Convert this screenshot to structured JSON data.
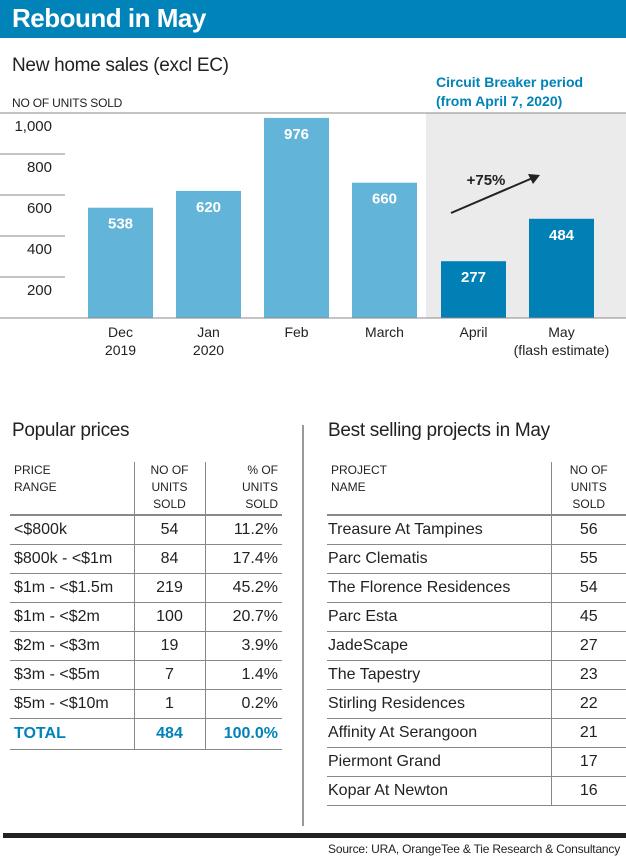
{
  "header": {
    "title": "Rebound in May"
  },
  "chart_data": {
    "type": "bar",
    "title": "New home sales (excl EC)",
    "ylabel": "NO OF UNITS SOLD",
    "ylim": [
      0,
      1000
    ],
    "yticks": [
      "200",
      "400",
      "600",
      "800",
      "1,000"
    ],
    "categories": [
      [
        "Dec",
        "2019"
      ],
      [
        "Jan",
        "2020"
      ],
      [
        "Feb",
        ""
      ],
      [
        "March",
        ""
      ],
      [
        "April",
        ""
      ],
      [
        "May",
        "(flash estimate)"
      ]
    ],
    "values": [
      538,
      620,
      976,
      660,
      277,
      484
    ],
    "value_labels": [
      "538",
      "620",
      "976",
      "660",
      "277",
      "484"
    ],
    "highlight": {
      "label_line1": "Circuit Breaker period",
      "label_line2": "(from April 7, 2020)",
      "categories": [
        "April",
        "May"
      ]
    },
    "annotation": "+75%",
    "colors": {
      "normal": "#62b4d8",
      "circuit_breaker": "#0080b4",
      "shade": "#ebebeb",
      "accent": "#0083b8"
    }
  },
  "prices": {
    "title": "Popular prices",
    "headers": [
      "PRICE\nRANGE",
      "NO OF\nUNITS\nSOLD",
      "% OF\nUNITS\nSOLD"
    ],
    "rows": [
      [
        "<$800k",
        "54",
        "11.2%"
      ],
      [
        "$800k - <$1m",
        "84",
        "17.4%"
      ],
      [
        "$1m - <$1.5m",
        "219",
        "45.2%"
      ],
      [
        "$1m - <$2m",
        "100",
        "20.7%"
      ],
      [
        "$2m - <$3m",
        "19",
        "3.9%"
      ],
      [
        "$3m - <$5m",
        "7",
        "1.4%"
      ],
      [
        "$5m - <$10m",
        "1",
        "0.2%"
      ]
    ],
    "total": [
      "TOTAL",
      "484",
      "100.0%"
    ]
  },
  "projects": {
    "title": "Best selling projects in May",
    "headers": [
      "PROJECT\nNAME",
      "NO OF\nUNITS\nSOLD"
    ],
    "rows": [
      [
        "Treasure At Tampines",
        "56"
      ],
      [
        "Parc Clematis",
        "55"
      ],
      [
        "The Florence Residences",
        "54"
      ],
      [
        "Parc Esta",
        "45"
      ],
      [
        "JadeScape",
        "27"
      ],
      [
        "The Tapestry",
        "23"
      ],
      [
        "Stirling Residences",
        "22"
      ],
      [
        "Affinity At Serangoon",
        "21"
      ],
      [
        "Piermont Grand",
        "17"
      ],
      [
        "Kopar At Newton",
        "16"
      ]
    ]
  },
  "source": "Source: URA, OrangeTee & Tie Research & Consultancy"
}
